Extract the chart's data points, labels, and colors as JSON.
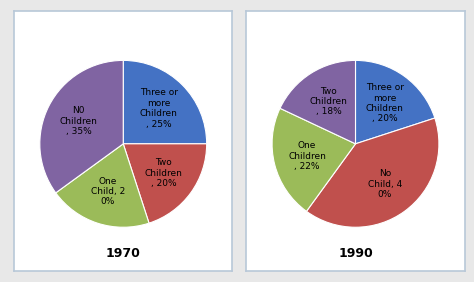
{
  "chart1": {
    "title": "1970",
    "labels": [
      "Three or\nmore\nChildren\n, 25%",
      "Two\nChildren\n, 20%",
      "One\nChild, 2\n0%",
      "N0\nChildren\n, 35%"
    ],
    "values": [
      25,
      20,
      20,
      35
    ],
    "colors": [
      "#4472C4",
      "#C0504D",
      "#9BBB59",
      "#8064A2"
    ],
    "startangle": 90,
    "counterclock": false
  },
  "chart2": {
    "title": "1990",
    "labels": [
      "Three or\nmore\nChildren\n, 20%",
      "No\nChild, 4\n0%",
      "One\nChildren\n, 22%",
      "Two\nChildren\n, 18%"
    ],
    "values": [
      20,
      40,
      22,
      18
    ],
    "colors": [
      "#4472C4",
      "#C0504D",
      "#9BBB59",
      "#8064A2"
    ],
    "startangle": 90,
    "counterclock": false
  },
  "fig_bg": "#e8e8e8",
  "box_bg": "#ffffff",
  "box_border": "#b8c8d8",
  "title_fontsize": 9,
  "label_fontsize": 6.5
}
